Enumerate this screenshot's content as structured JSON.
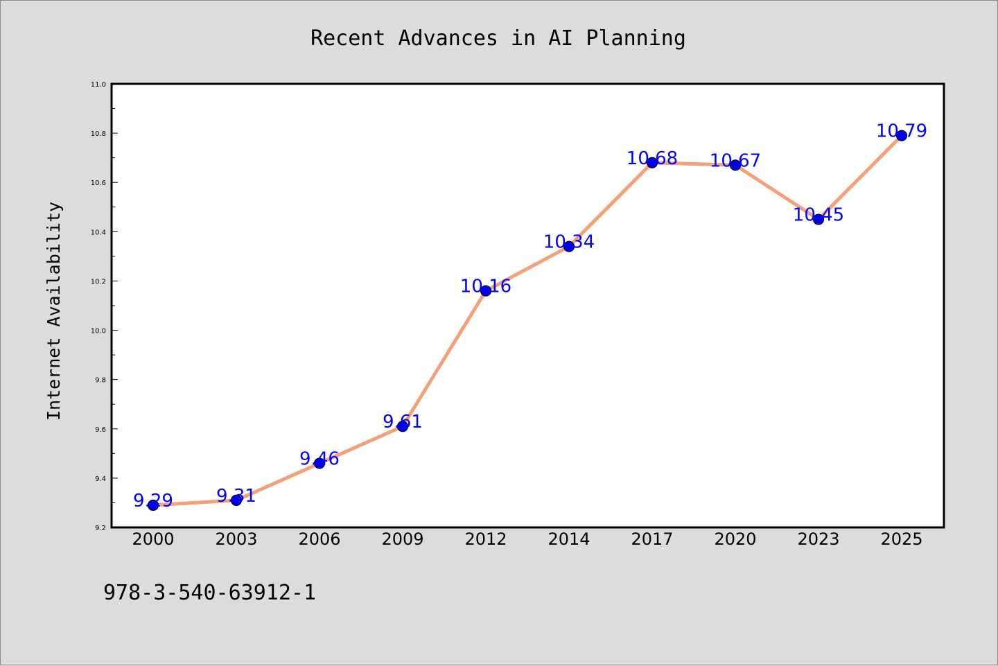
{
  "chart_data": {
    "type": "line",
    "title": "Recent Advances in AI Planning",
    "xlabel": "",
    "ylabel": "Internet Availability",
    "categories": [
      "2000",
      "2003",
      "2006",
      "2009",
      "2012",
      "2014",
      "2017",
      "2020",
      "2023",
      "2025"
    ],
    "values": [
      9.29,
      9.31,
      9.46,
      9.61,
      10.16,
      10.34,
      10.68,
      10.67,
      10.45,
      10.79
    ],
    "data_labels": [
      "9.29",
      "9.31",
      "9.46",
      "9.61",
      "10.16",
      "10.34",
      "10.68",
      "10.67",
      "10.45",
      "10.79"
    ],
    "ylim": [
      9.2,
      11.0
    ],
    "yticks": [
      "9.2",
      "9.4",
      "9.6",
      "9.8",
      "10.0",
      "10.2",
      "10.4",
      "10.6",
      "10.8",
      "11.0"
    ],
    "grid": false,
    "legend": "none",
    "line_color": "#f4a07a",
    "marker_color": "#0000ee",
    "label_color": "#0000ff",
    "background": "#dcdcdc",
    "plot_background": "#ffffff"
  },
  "footer": {
    "isbn": "978-3-540-63912-1"
  }
}
